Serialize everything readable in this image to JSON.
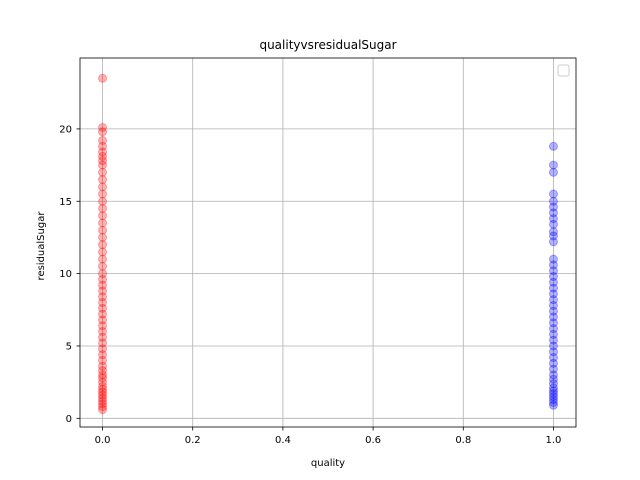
{
  "chart_data": {
    "type": "scatter",
    "title": "qualityvsresidualSugar",
    "xlabel": "quality",
    "ylabel": "residualSugar",
    "xlim": [
      -0.05,
      1.05
    ],
    "ylim": [
      -0.6,
      24.9
    ],
    "xticks": [
      0.0,
      0.2,
      0.4,
      0.6,
      0.8,
      1.0
    ],
    "xtick_labels": [
      "0.0",
      "0.2",
      "0.4",
      "0.6",
      "0.8",
      "1.0"
    ],
    "yticks": [
      0,
      5,
      10,
      15,
      20
    ],
    "ytick_labels": [
      "0",
      "5",
      "10",
      "15",
      "20"
    ],
    "grid": true,
    "legend": "top-right (empty)",
    "series": [
      {
        "color": "#ff0000",
        "x": 0,
        "y": [
          0.6,
          0.8,
          1.0,
          1.2,
          1.4,
          1.6,
          1.8,
          2.0,
          2.2,
          2.5,
          2.8,
          3.0,
          3.3,
          3.6,
          4.0,
          4.4,
          4.8,
          5.2,
          5.6,
          6.0,
          6.4,
          6.8,
          7.2,
          7.6,
          8.0,
          8.4,
          8.8,
          9.2,
          9.6,
          10.0,
          10.5,
          11.0,
          11.5,
          12.0,
          12.5,
          13.0,
          13.5,
          14.0,
          14.5,
          15.0,
          15.5,
          16.0,
          16.5,
          17.0,
          17.5,
          17.8,
          18.1,
          18.4,
          18.8,
          19.2,
          19.8,
          20.1,
          23.5
        ]
      },
      {
        "color": "#0000ff",
        "x": 1,
        "y": [
          0.9,
          1.1,
          1.3,
          1.5,
          1.7,
          1.9,
          2.1,
          2.4,
          2.7,
          3.0,
          3.4,
          3.8,
          4.2,
          4.6,
          5.0,
          5.4,
          5.8,
          6.2,
          6.6,
          7.0,
          7.4,
          7.8,
          8.2,
          8.6,
          9.0,
          9.4,
          9.8,
          10.2,
          10.6,
          11.0,
          12.2,
          12.6,
          12.9,
          13.4,
          13.8,
          14.2,
          14.6,
          15.0,
          15.5,
          17.0,
          17.5,
          18.8
        ]
      }
    ]
  }
}
